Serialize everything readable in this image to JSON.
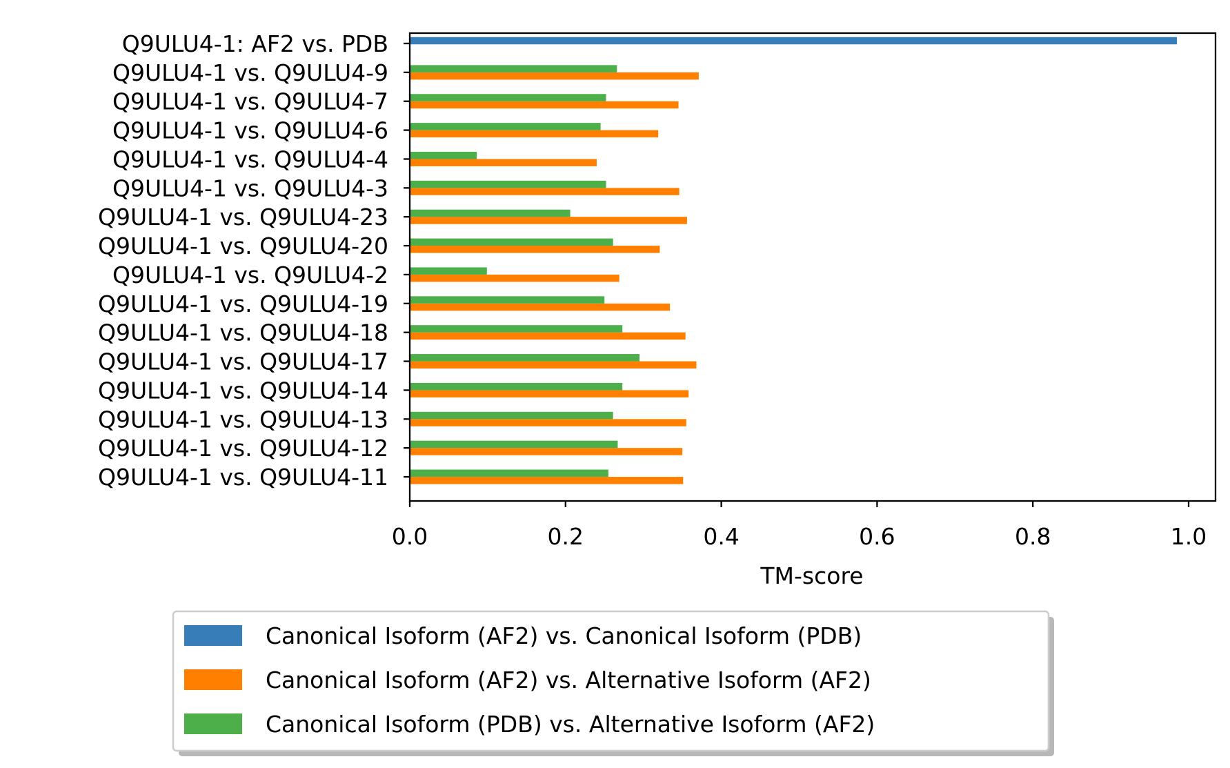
{
  "chart_data": {
    "type": "bar",
    "orientation": "horizontal",
    "title": "",
    "xlabel": "TM-score",
    "ylabel": "",
    "xlim": [
      0,
      1.035
    ],
    "xticks": [
      "0.0",
      "0.2",
      "0.4",
      "0.6",
      "0.8",
      "1.0"
    ],
    "xtick_values": [
      0,
      0.2,
      0.4,
      0.6,
      0.8,
      1.0
    ],
    "grid": false,
    "legend_placement": "bottom-center (below axes)",
    "categories": [
      "Q9ULU4-1: AF2 vs. PDB",
      "Q9ULU4-1 vs. Q9ULU4-9",
      "Q9ULU4-1 vs. Q9ULU4-7",
      "Q9ULU4-1 vs. Q9ULU4-6",
      "Q9ULU4-1 vs. Q9ULU4-4",
      "Q9ULU4-1 vs. Q9ULU4-3",
      "Q9ULU4-1 vs. Q9ULU4-23",
      "Q9ULU4-1 vs. Q9ULU4-20",
      "Q9ULU4-1 vs. Q9ULU4-2",
      "Q9ULU4-1 vs. Q9ULU4-19",
      "Q9ULU4-1 vs. Q9ULU4-18",
      "Q9ULU4-1 vs. Q9ULU4-17",
      "Q9ULU4-1 vs. Q9ULU4-14",
      "Q9ULU4-1 vs. Q9ULU4-13",
      "Q9ULU4-1 vs. Q9ULU4-12",
      "Q9ULU4-1 vs. Q9ULU4-11"
    ],
    "series": [
      {
        "name": "Canonical Isoform (AF2) vs. Canonical Isoform (PDB)",
        "color": "#377eb8",
        "values": [
          0.985,
          null,
          null,
          null,
          null,
          null,
          null,
          null,
          null,
          null,
          null,
          null,
          null,
          null,
          null,
          null
        ]
      },
      {
        "name": "Canonical Isoform (AF2) vs. Alternative Isoform (AF2)",
        "color": "#ff7f00",
        "values": [
          null,
          0.371,
          0.345,
          0.319,
          0.24,
          0.346,
          0.356,
          0.321,
          0.269,
          0.334,
          0.354,
          0.368,
          0.358,
          0.355,
          0.35,
          0.351
        ]
      },
      {
        "name": "Canonical Isoform (PDB) vs. Alternative Isoform (AF2)",
        "color": "#4daf4a",
        "values": [
          null,
          0.266,
          0.252,
          0.245,
          0.086,
          0.252,
          0.206,
          0.261,
          0.099,
          0.25,
          0.273,
          0.295,
          0.273,
          0.261,
          0.267,
          0.255
        ]
      }
    ]
  }
}
